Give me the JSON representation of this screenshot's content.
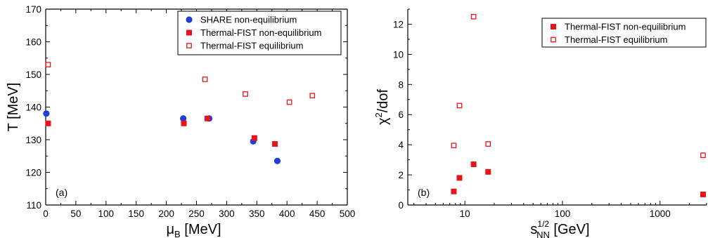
{
  "colors": {
    "share": "#1f3fd9",
    "fist": "#e8141b",
    "axis": "#000000"
  },
  "chart_data": [
    {
      "type": "scatter",
      "panel_label": "(a)",
      "xlabel_main": "μ",
      "xlabel_sub": "B",
      "xlabel_rest": " [MeV]",
      "ylabel": "T [MeV]",
      "xlim": [
        0,
        500
      ],
      "ylim": [
        110,
        170
      ],
      "x_scale": "linear",
      "xticks": [
        0,
        50,
        100,
        150,
        200,
        250,
        300,
        350,
        400,
        450,
        500
      ],
      "yticks": [
        110,
        120,
        130,
        140,
        150,
        160,
        170
      ],
      "grid": false,
      "legend_position": "top-right",
      "series": [
        {
          "name": "SHARE non-equilibrium",
          "marker": "filled-circle",
          "color": "#1f3fd9",
          "points": [
            [
              1,
              138
            ],
            [
              228,
              136.5
            ],
            [
              271,
              136.5
            ],
            [
              344,
              129.5
            ],
            [
              384,
              123.5
            ]
          ]
        },
        {
          "name": "Thermal-FIST non-equilibrium",
          "marker": "filled-square",
          "color": "#e8141b",
          "points": [
            [
              4,
              135
            ],
            [
              229,
              135
            ],
            [
              268,
              136.5
            ],
            [
              346,
              130.5
            ],
            [
              380,
              128.7
            ]
          ]
        },
        {
          "name": "Thermal-FIST equilibrium",
          "marker": "open-square",
          "color": "#e8141b",
          "points": [
            [
              4,
              153
            ],
            [
              264,
              148.5
            ],
            [
              331,
              144
            ],
            [
              404,
              141.5
            ],
            [
              442,
              143.5
            ]
          ]
        }
      ]
    },
    {
      "type": "scatter",
      "panel_label": "(b)",
      "xlabel_main": "s",
      "xlabel_sub": "NN",
      "xlabel_sup": "1/2",
      "xlabel_rest": " [GeV]",
      "ylabel_main": "χ",
      "ylabel_sup": "2",
      "ylabel_rest": "/dof",
      "xlim": [
        2.6,
        3000
      ],
      "ylim": [
        0,
        13
      ],
      "x_scale": "log",
      "xticks": [
        10,
        100,
        1000
      ],
      "xtick_labels": [
        "10",
        "100",
        "1000"
      ],
      "yticks": [
        0,
        2,
        4,
        6,
        8,
        10,
        12
      ],
      "grid": false,
      "legend_position": "top-right",
      "series": [
        {
          "name": "Thermal-FIST non-equilibrium",
          "marker": "filled-square",
          "color": "#e8141b",
          "points": [
            [
              7.7,
              0.9
            ],
            [
              8.8,
              1.8
            ],
            [
              12.3,
              2.7
            ],
            [
              17.3,
              2.2
            ],
            [
              2760,
              0.7
            ]
          ]
        },
        {
          "name": "Thermal-FIST equilibrium",
          "marker": "open-square",
          "color": "#e8141b",
          "points": [
            [
              7.7,
              3.95
            ],
            [
              8.8,
              6.6
            ],
            [
              12.3,
              12.5
            ],
            [
              17.3,
              4.05
            ],
            [
              2760,
              3.3
            ]
          ]
        }
      ]
    }
  ]
}
